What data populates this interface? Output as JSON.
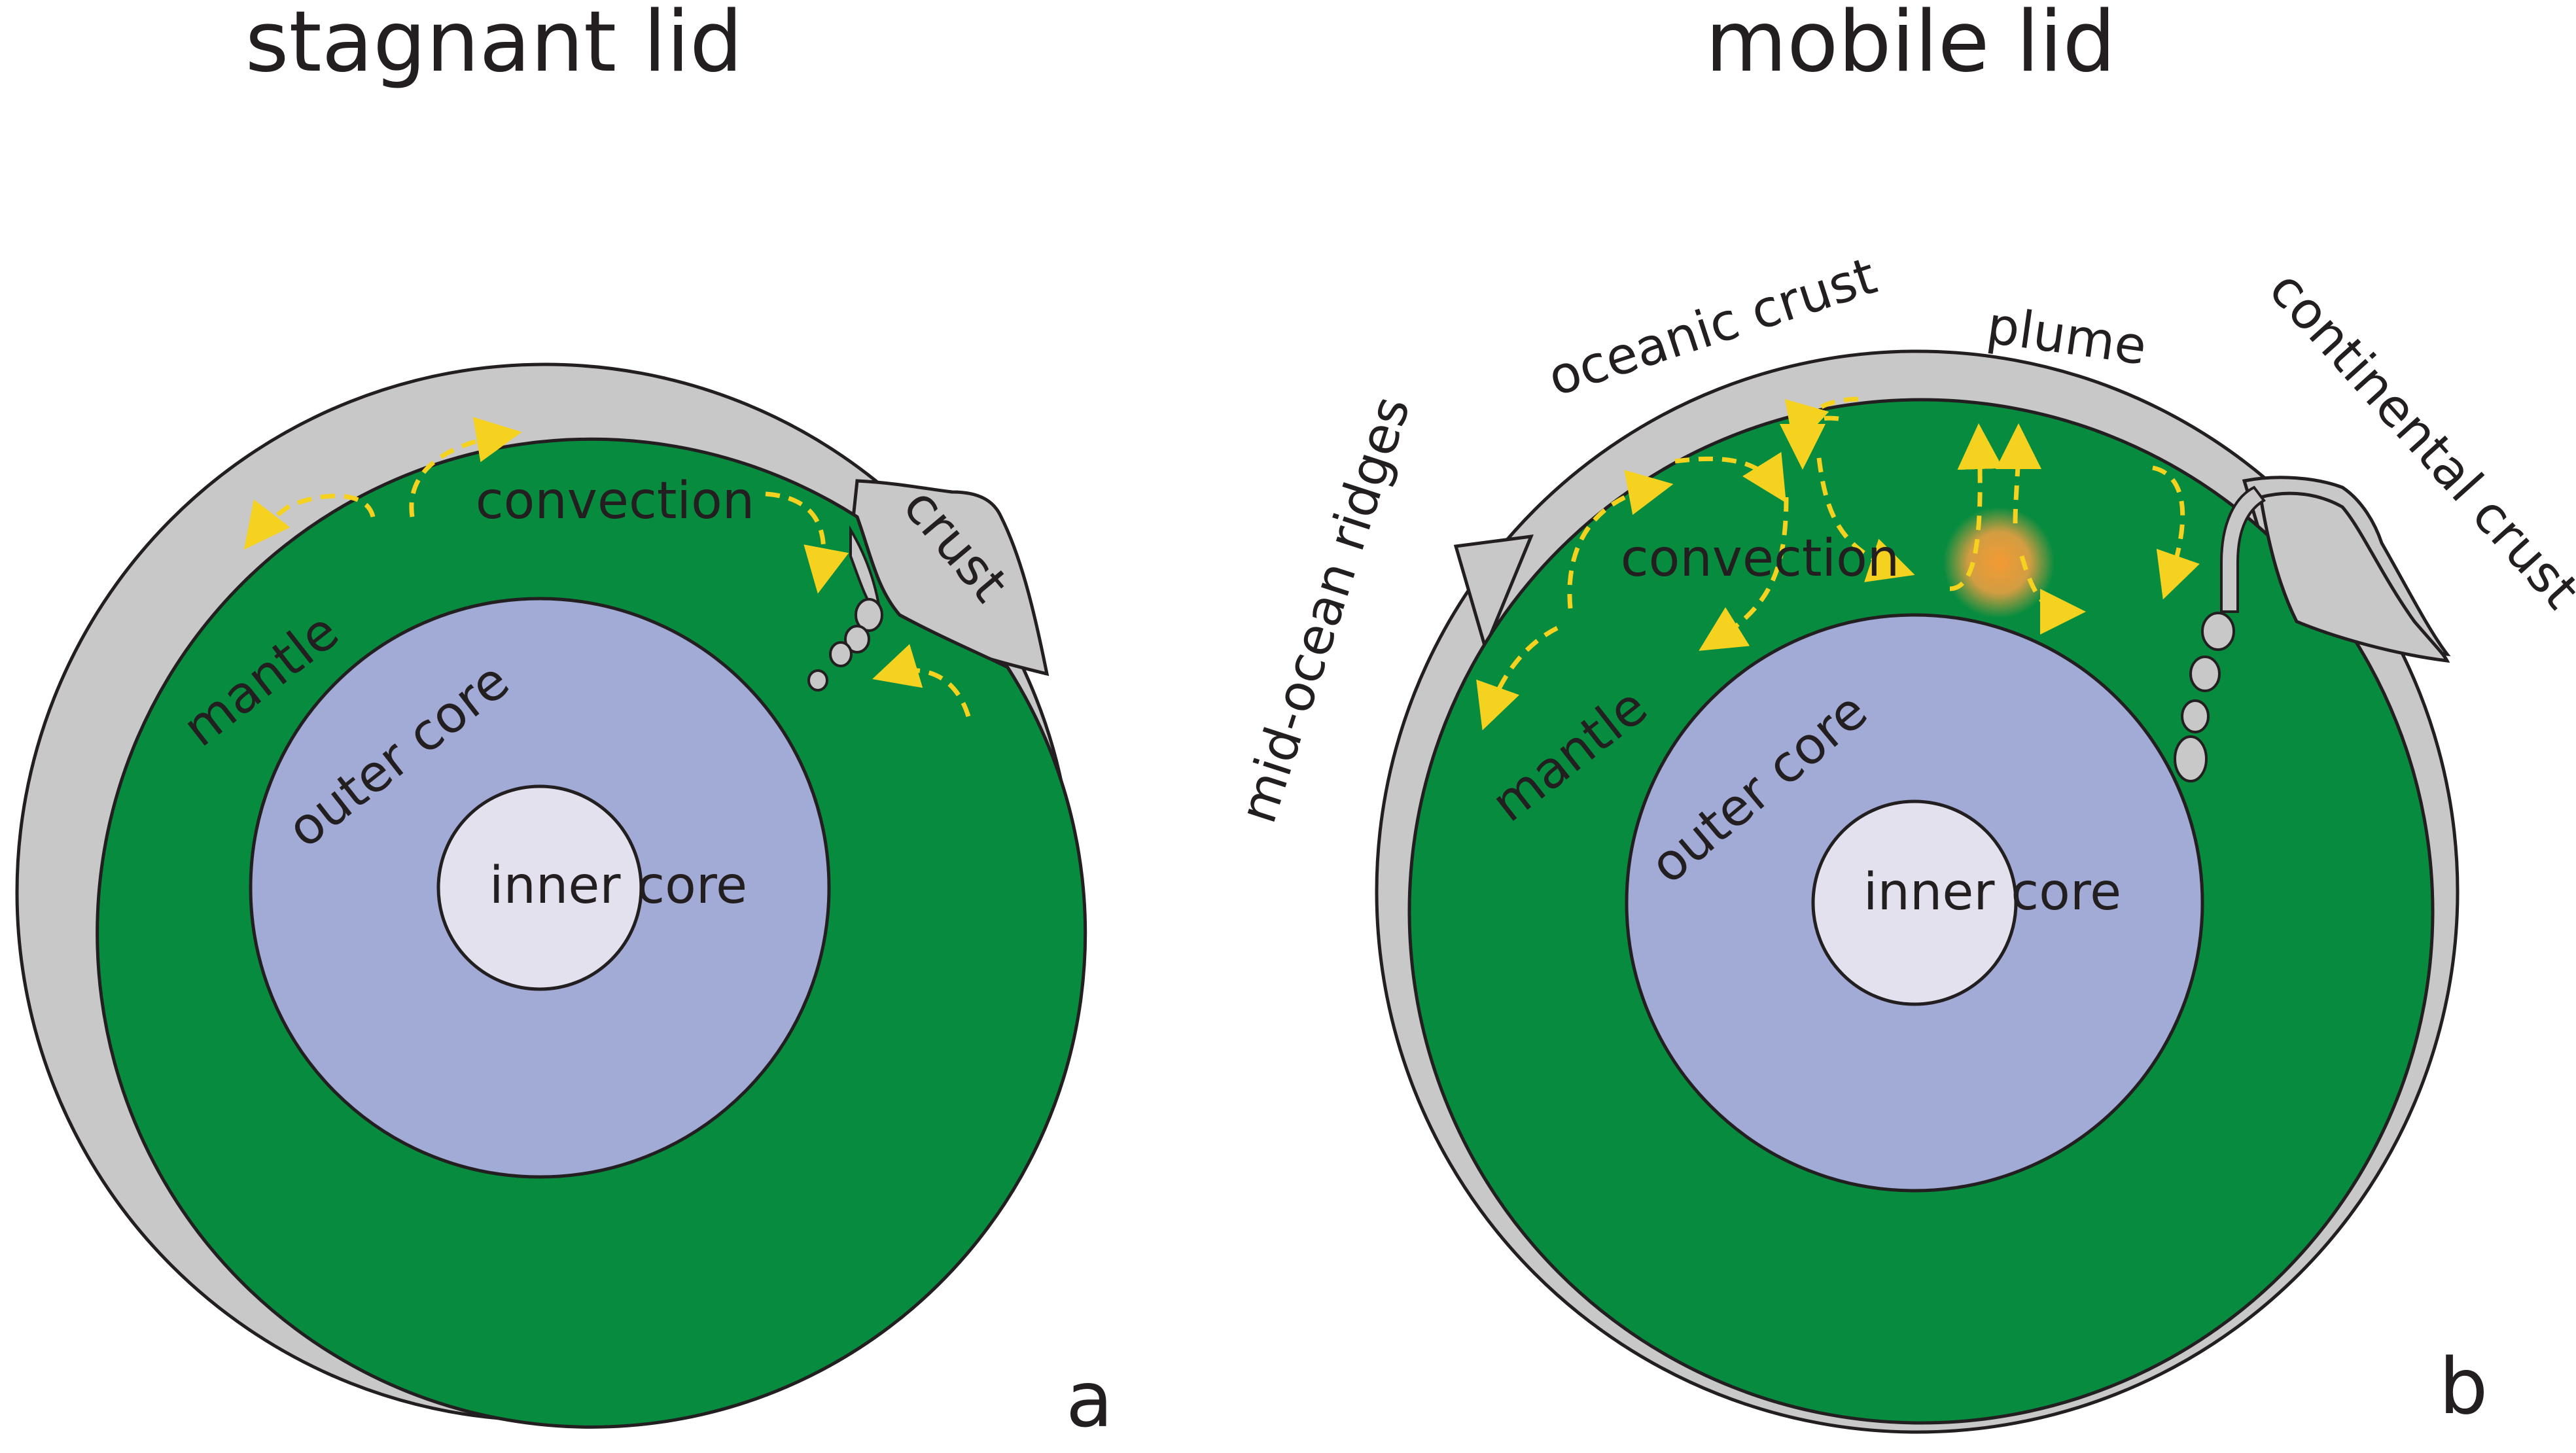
{
  "panel_a": {
    "title": "stagnant lid",
    "letter": "a",
    "labels": {
      "crust": "crust",
      "convection": "convection",
      "mantle": "mantle",
      "outer_core": "outer core",
      "inner_core": "inner core"
    }
  },
  "panel_b": {
    "title": "mobile lid",
    "letter": "b",
    "labels": {
      "mid_ocean_ridges": "mid-ocean ridges",
      "oceanic_crust": "oceanic crust",
      "plume": "plume",
      "continental_crust": "continental crust",
      "convection": "convection",
      "mantle": "mantle",
      "outer_core": "outer core",
      "inner_core": "inner core"
    }
  },
  "colors": {
    "crust": "#c9c8c9",
    "mantle": "#078c3f",
    "outer_core": "#a2aad6",
    "inner_core": "#e3e1ee",
    "convection_arrows": "#f4d21f",
    "plume": "#f6a042",
    "outline": "#231f20"
  }
}
